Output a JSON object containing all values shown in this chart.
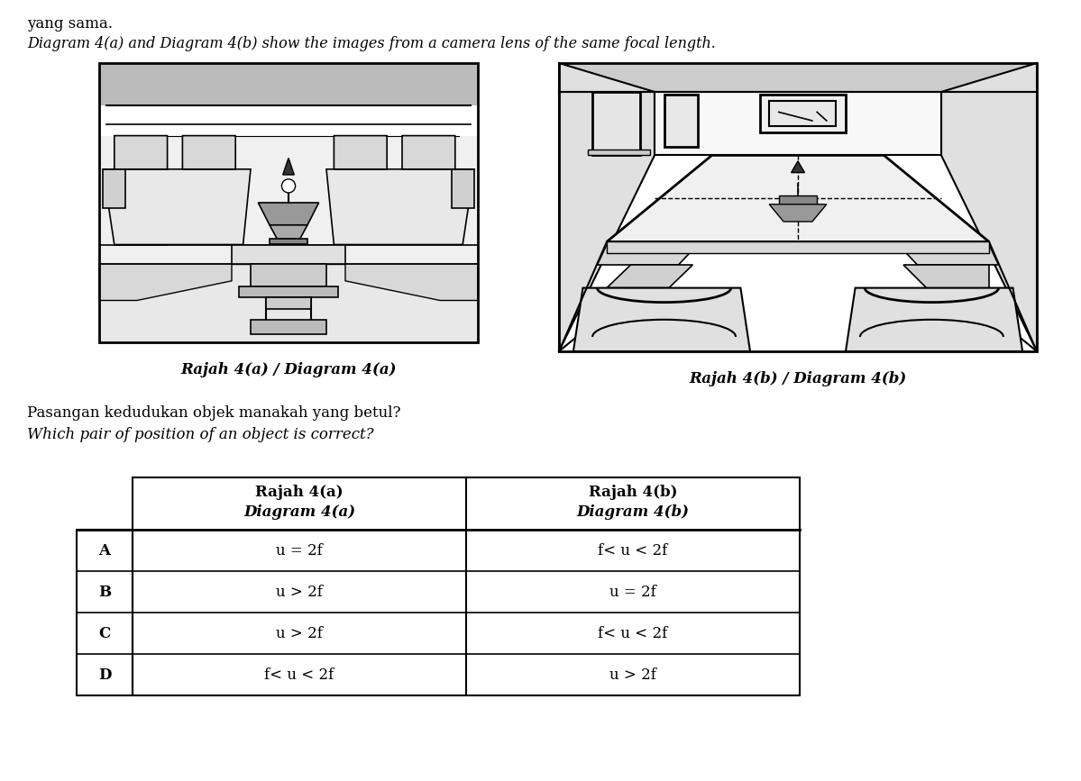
{
  "title_line1": "yang sama.",
  "title_line2": "Diagram 4(a) and Diagram 4(b) show the images from a camera lens of the same focal length.",
  "caption_a": "Rajah 4(a) / Diagram 4(a)",
  "caption_b": "Rajah 4(b) / Diagram 4(b)",
  "question_line1": "Pasangan kedudukan objek manakah yang betul?",
  "question_line2": "Which pair of position of an object is correct?",
  "table_header_col1_line1": "Rajah 4(a)",
  "table_header_col1_line2": "Diagram 4(a)",
  "table_header_col2_line1": "Rajah 4(b)",
  "table_header_col2_line2": "Diagram 4(b)",
  "rows": [
    {
      "label": "A",
      "col1": "u = 2f",
      "col2": "f≤ u < 2f"
    },
    {
      "label": "B",
      "col1": "u > 2f",
      "col2": "u = 2f"
    },
    {
      "label": "C",
      "col1": "u > 2f",
      "col2": "f≤ u < 2f"
    },
    {
      "label": "D",
      "col1": "f≤ u < 2f",
      "col2": "u > 2f"
    }
  ],
  "bg_color": "#ffffff",
  "text_color": "#000000"
}
